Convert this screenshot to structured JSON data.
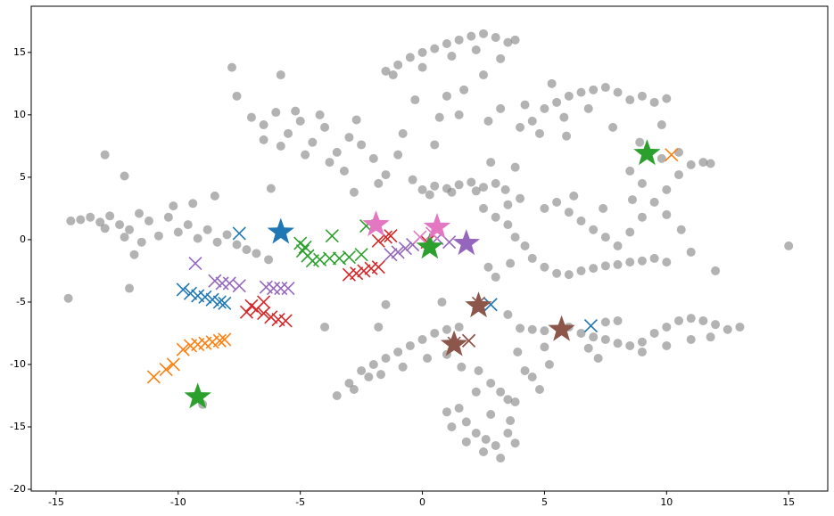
{
  "chart_data": {
    "type": "scatter",
    "xlim": [
      -16.02,
      16.6
    ],
    "ylim": [
      -20.14,
      18.7
    ],
    "xticks": [
      -15,
      -10,
      -5,
      0,
      5,
      10,
      15
    ],
    "yticks": [
      -20,
      -15,
      -10,
      -5,
      0,
      5,
      10,
      15
    ],
    "series": [
      {
        "marker": "o",
        "color": "#808080",
        "x": [
          -14.4,
          -14,
          -13.6,
          -13.2,
          -12.8,
          -12.4,
          -12,
          -11.6,
          -11.2,
          -10.8,
          -10.4,
          -10,
          -9.6,
          -9.2,
          -8.8,
          -8.4,
          -8,
          -7.6,
          -7.2,
          -6.8,
          -13,
          -12.2,
          -11.5,
          -10.2,
          -9.4,
          -11.8,
          -6.3,
          -14.5,
          -13,
          -12.2,
          -12,
          -7,
          -6.5,
          -6,
          -5.5,
          -5,
          -4.5,
          -4,
          -3.5,
          -3,
          -2.5,
          -2,
          -6.5,
          -5.8,
          -4.8,
          -3.8,
          -3.2,
          -2.7,
          -5.2,
          -4.2,
          -1.5,
          -1,
          -7.8,
          -7.6,
          -5.8,
          -6.2,
          -8.5,
          -2.8,
          -1.8,
          -1.5,
          -1,
          -0.5,
          0,
          0.5,
          1,
          1.5,
          2,
          2.5,
          3,
          3.5,
          -1.2,
          0,
          1.2,
          2.2,
          3.2,
          2.5,
          3.8,
          -0.3,
          1.7,
          1.5,
          0.7,
          -0.8,
          0.5,
          2.7,
          3.2,
          1,
          0,
          0.5,
          1,
          1.5,
          2,
          2.5,
          3,
          0.3,
          1.2,
          2.2,
          3.4,
          -0.4,
          2.8,
          3.8,
          4,
          4.5,
          5,
          5.5,
          6,
          6.5,
          7,
          7.5,
          8,
          8.5,
          9,
          9.5,
          10,
          4.8,
          5.8,
          6.8,
          7.8,
          4.2,
          5.3,
          9.8,
          5.9,
          2.5,
          3,
          3.5,
          3.8,
          4.2,
          4.5,
          5,
          5.5,
          6,
          6.5,
          7,
          7.5,
          8,
          8.5,
          9,
          9.5,
          10,
          5,
          5.5,
          6,
          6.5,
          7,
          7.5,
          8,
          8.5,
          9,
          9.5,
          10,
          10.5,
          11,
          11.5,
          8.5,
          9,
          8.6,
          10,
          10.6,
          4,
          3.5,
          6.2,
          7.4,
          11,
          15,
          3,
          2.7,
          3.6,
          9.8,
          10.5,
          11.8,
          8.9,
          12,
          4,
          4.5,
          5,
          6,
          6.5,
          7,
          7.5,
          8,
          8.5,
          9,
          9.5,
          10,
          10.5,
          11,
          11.5,
          12,
          12.5,
          13,
          8,
          9,
          10,
          11,
          7.2,
          6.8,
          7.5,
          11.8,
          -3.5,
          -3,
          -2.5,
          -2,
          -1.5,
          -1,
          -0.5,
          0,
          0.5,
          1,
          1.5,
          -2.8,
          -2.2,
          -1.7,
          -0.8,
          0.2,
          1,
          1.6,
          2.3,
          2.8,
          3.2,
          3.5,
          3.8,
          2.2,
          1.5,
          1.8,
          2.2,
          2.6,
          3,
          3.2,
          2.5,
          1.8,
          3.5,
          3.8,
          1,
          1.2,
          2.8,
          3.6,
          4.2,
          4.5,
          4.8,
          5.2,
          5,
          0.8,
          -1.5,
          -1.8,
          -4,
          -9,
          3.5,
          3.9
        ],
        "y": [
          1.5,
          1.6,
          1.8,
          1.4,
          1.9,
          1.2,
          0.8,
          2.1,
          1.5,
          0.3,
          1.8,
          0.6,
          1.2,
          0.1,
          0.8,
          -0.2,
          0.4,
          -0.4,
          -0.8,
          -1.1,
          0.9,
          0.2,
          -0.2,
          2.7,
          2.9,
          -1.2,
          -1.6,
          -4.7,
          6.8,
          5.1,
          -3.9,
          9.8,
          9.2,
          10.2,
          8.5,
          9.5,
          7.8,
          9,
          7,
          8.2,
          7.6,
          6.5,
          8,
          7.5,
          6.8,
          6.2,
          5.5,
          9.6,
          10.3,
          10,
          5.2,
          6.8,
          13.8,
          11.5,
          13.2,
          4.1,
          3.5,
          3.8,
          4.5,
          13.5,
          14,
          14.6,
          15,
          15.3,
          15.7,
          16,
          16.3,
          16.5,
          16.2,
          15.8,
          13.2,
          13.8,
          14.7,
          15.2,
          14.5,
          13.2,
          16,
          11.2,
          12,
          10,
          9.8,
          8.5,
          7.6,
          9.5,
          10.5,
          11.5,
          4,
          4.3,
          4.1,
          4.4,
          4.6,
          4.2,
          4.5,
          3.6,
          3.8,
          3.9,
          4,
          4.8,
          6.2,
          5.8,
          9,
          9.5,
          10.5,
          11,
          11.5,
          11.8,
          12,
          12.2,
          11.8,
          11.2,
          11.5,
          11,
          11.3,
          8.5,
          9.8,
          10.5,
          9,
          10.8,
          12.5,
          9.2,
          8.3,
          2.5,
          1.8,
          1.2,
          0.2,
          -0.5,
          -1.5,
          -2.2,
          -2.7,
          -2.8,
          -2.5,
          -2.3,
          -2.1,
          -2,
          -1.8,
          -1.7,
          -1.5,
          -1.8,
          2.5,
          3,
          2.2,
          1.5,
          0.8,
          0.2,
          -0.5,
          0.6,
          1.8,
          3,
          4,
          5.2,
          6,
          6.2,
          5.5,
          4.5,
          3.2,
          2,
          0.8,
          3.3,
          2.8,
          3.5,
          2.5,
          -1,
          -0.5,
          -3,
          -2.2,
          -1.9,
          6.5,
          7,
          6.1,
          7.8,
          -2.5,
          -7.1,
          -7.2,
          -7.3,
          -7,
          -7.5,
          -7.8,
          -8,
          -8.3,
          -8.5,
          -8.2,
          -7.5,
          -7,
          -6.5,
          -6.3,
          -6.5,
          -6.8,
          -7.2,
          -7,
          -6.5,
          -9,
          -8.5,
          -8,
          -9.5,
          -8.7,
          -6.6,
          -7.8,
          -12.5,
          -11.5,
          -10.5,
          -10,
          -9.5,
          -9,
          -8.5,
          -8,
          -7.5,
          -7.2,
          -7,
          -12,
          -11,
          -10.8,
          -10.2,
          -9.5,
          -9.2,
          -10.2,
          -10.5,
          -11.5,
          -12.2,
          -12.8,
          -13,
          -12.2,
          -13.5,
          -14.6,
          -15.5,
          -16,
          -16.5,
          -17.5,
          -17,
          -16.2,
          -15.5,
          -16.3,
          -13.8,
          -15,
          -14,
          -14.5,
          -10.5,
          -11,
          -12,
          -10,
          -8.6,
          -5,
          -5.2,
          -7,
          -7,
          -13.2,
          -6,
          -9
        ]
      },
      {
        "marker": "x",
        "color": "#1f77b4",
        "x": [
          -7.5,
          -9.8,
          -9.5,
          -9.2,
          -8.9,
          -8.6,
          -8.3,
          -8.1,
          2.8,
          6.9
        ],
        "y": [
          0.5,
          -4,
          -4.3,
          -4.5,
          -4.6,
          -4.8,
          -5,
          -5.1,
          -5.2,
          -6.9
        ]
      },
      {
        "marker": "x",
        "color": "#ff7f0e",
        "x": [
          -11,
          -10.5,
          -10.2,
          -9.8,
          -9.5,
          -9.2,
          -8.9,
          -8.6,
          -8.3,
          -8.1,
          10.2
        ],
        "y": [
          -11,
          -10.4,
          -10,
          -8.8,
          -8.5,
          -8.4,
          -8.3,
          -8.2,
          -8.1,
          -8,
          6.8
        ]
      },
      {
        "marker": "x",
        "color": "#2ca02c",
        "x": [
          -5,
          -4.9,
          -4.7,
          -4.5,
          -4.2,
          -3.8,
          -3.4,
          -3,
          -2.5,
          -3.7,
          -2.3,
          -4.8
        ],
        "y": [
          -0.3,
          -0.9,
          -1.3,
          -1.7,
          -1.6,
          -1.5,
          -1.5,
          -1.4,
          -1.2,
          0.3,
          1.1,
          -0.6
        ]
      },
      {
        "marker": "x",
        "color": "#d62728",
        "x": [
          -7.2,
          -7,
          -6.8,
          -6.5,
          -6.2,
          -5.9,
          -5.6,
          -6.5,
          -3,
          -2.7,
          -2.4,
          -2.1,
          -1.8,
          -1.5,
          -1.8,
          -1.3,
          0.2,
          1.9
        ],
        "y": [
          -5.8,
          -5.3,
          -5.6,
          -5.9,
          -6.2,
          -6.4,
          -6.5,
          -5,
          -2.8,
          -2.7,
          -2.5,
          -2.3,
          -2.2,
          0.2,
          -0.1,
          0.3,
          -0.2,
          -8.1
        ]
      },
      {
        "marker": "x",
        "color": "#9467bd",
        "x": [
          -9.3,
          -8.5,
          -8.2,
          -7.9,
          -7.5,
          -6.4,
          -6.1,
          -5.8,
          -5.5,
          -1.3,
          -1,
          -0.7,
          -0.4,
          0.6,
          1.1
        ],
        "y": [
          -1.9,
          -3.3,
          -3.5,
          -3.5,
          -3.7,
          -3.8,
          -3.9,
          -3.9,
          -3.9,
          -1.2,
          -1,
          -0.7,
          -0.4,
          0.1,
          -0.2
        ]
      },
      {
        "marker": "x",
        "color": "#8c564b",
        "x": [
          2.3,
          1.9,
          1.3
        ],
        "y": [
          -5.1,
          -8.1,
          -8.3
        ]
      },
      {
        "marker": "x",
        "color": "#e377c2",
        "x": [
          0.4,
          -0.1
        ],
        "y": [
          0.5,
          0.2
        ]
      },
      {
        "marker": "star",
        "color": "#1f77b4",
        "x": [
          -5.8
        ],
        "y": [
          0.6
        ]
      },
      {
        "marker": "star",
        "color": "#2ca02c",
        "x": [
          -9.2,
          0.3,
          9.2
        ],
        "y": [
          -12.6,
          -0.6,
          6.9
        ]
      },
      {
        "marker": "star",
        "color": "#e377c2",
        "x": [
          -1.9,
          0.6
        ],
        "y": [
          1.2,
          1.0
        ]
      },
      {
        "marker": "star",
        "color": "#9467bd",
        "x": [
          1.8
        ],
        "y": [
          -0.3
        ]
      },
      {
        "marker": "star",
        "color": "#8c564b",
        "x": [
          2.3,
          1.3,
          5.7
        ],
        "y": [
          -5.3,
          -8.4,
          -7.2
        ]
      }
    ]
  }
}
